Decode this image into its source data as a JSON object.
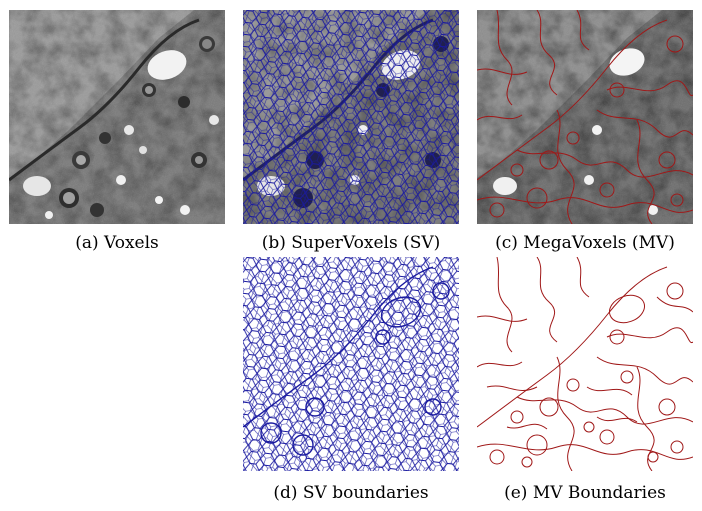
{
  "figure": {
    "panels": [
      {
        "id": "a",
        "caption": "(a) Voxels",
        "kind": "image"
      },
      {
        "id": "b",
        "caption": "(b) SuperVoxels (SV)",
        "kind": "image-overlay",
        "overlay_color": "#1a1aa0"
      },
      {
        "id": "c",
        "caption": "(c) MegaVoxels (MV)",
        "kind": "image-overlay",
        "overlay_color": "#a01818"
      },
      {
        "id": "d",
        "caption": "(d) SV boundaries",
        "kind": "boundaries",
        "overlay_color": "#1a1aa0"
      },
      {
        "id": "e",
        "caption": "(e) MV Boundaries",
        "kind": "boundaries",
        "overlay_color": "#a01818"
      }
    ]
  }
}
